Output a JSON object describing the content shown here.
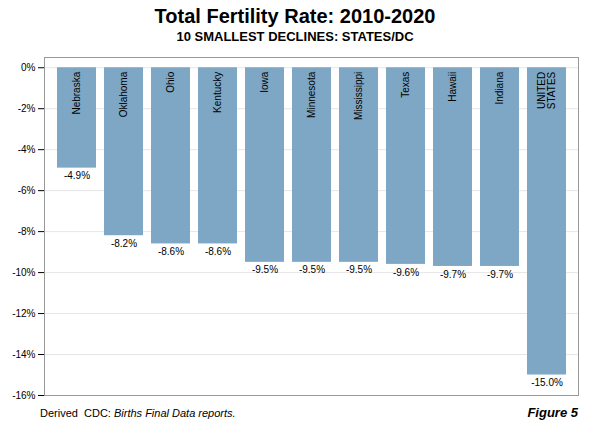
{
  "chart_data": {
    "type": "bar",
    "title": "Total Fertility Rate: 2010-2020",
    "subtitle": "10 SMALLEST DECLINES: STATES/DC",
    "categories": [
      "Nebraska",
      "Oklahoma",
      "Ohio",
      "Kentucky",
      "Iowa",
      "Minnesota",
      "Mississippi",
      "Texas",
      "Hawaii",
      "Indiana",
      "UNITED\nSTATES"
    ],
    "values": [
      -4.9,
      -8.2,
      -8.6,
      -8.6,
      -9.5,
      -9.5,
      -9.5,
      -9.6,
      -9.7,
      -9.7,
      -15.0
    ],
    "value_labels": [
      "-4.9%",
      "-8.2%",
      "-8.6%",
      "-8.6%",
      "-9.5%",
      "-9.5%",
      "-9.5%",
      "-9.6%",
      "-9.7%",
      "-9.7%",
      "-15.0%"
    ],
    "color": "#7da7c4",
    "ylim": [
      -16,
      0.5
    ],
    "yticks": [
      {
        "value": 0,
        "label": "0%"
      },
      {
        "value": -2,
        "label": "-2%"
      },
      {
        "value": -4,
        "label": "-4%"
      },
      {
        "value": -6,
        "label": "-6%"
      },
      {
        "value": -8,
        "label": "-8%"
      },
      {
        "value": -10,
        "label": "-10%"
      },
      {
        "value": -12,
        "label": "-12%"
      },
      {
        "value": -14,
        "label": "-14%"
      },
      {
        "value": -16,
        "label": "-16%"
      }
    ],
    "grid": true,
    "annotations": [
      "Derived  CDC: ",
      "Births Final Data reports.",
      "Figure 5"
    ]
  }
}
